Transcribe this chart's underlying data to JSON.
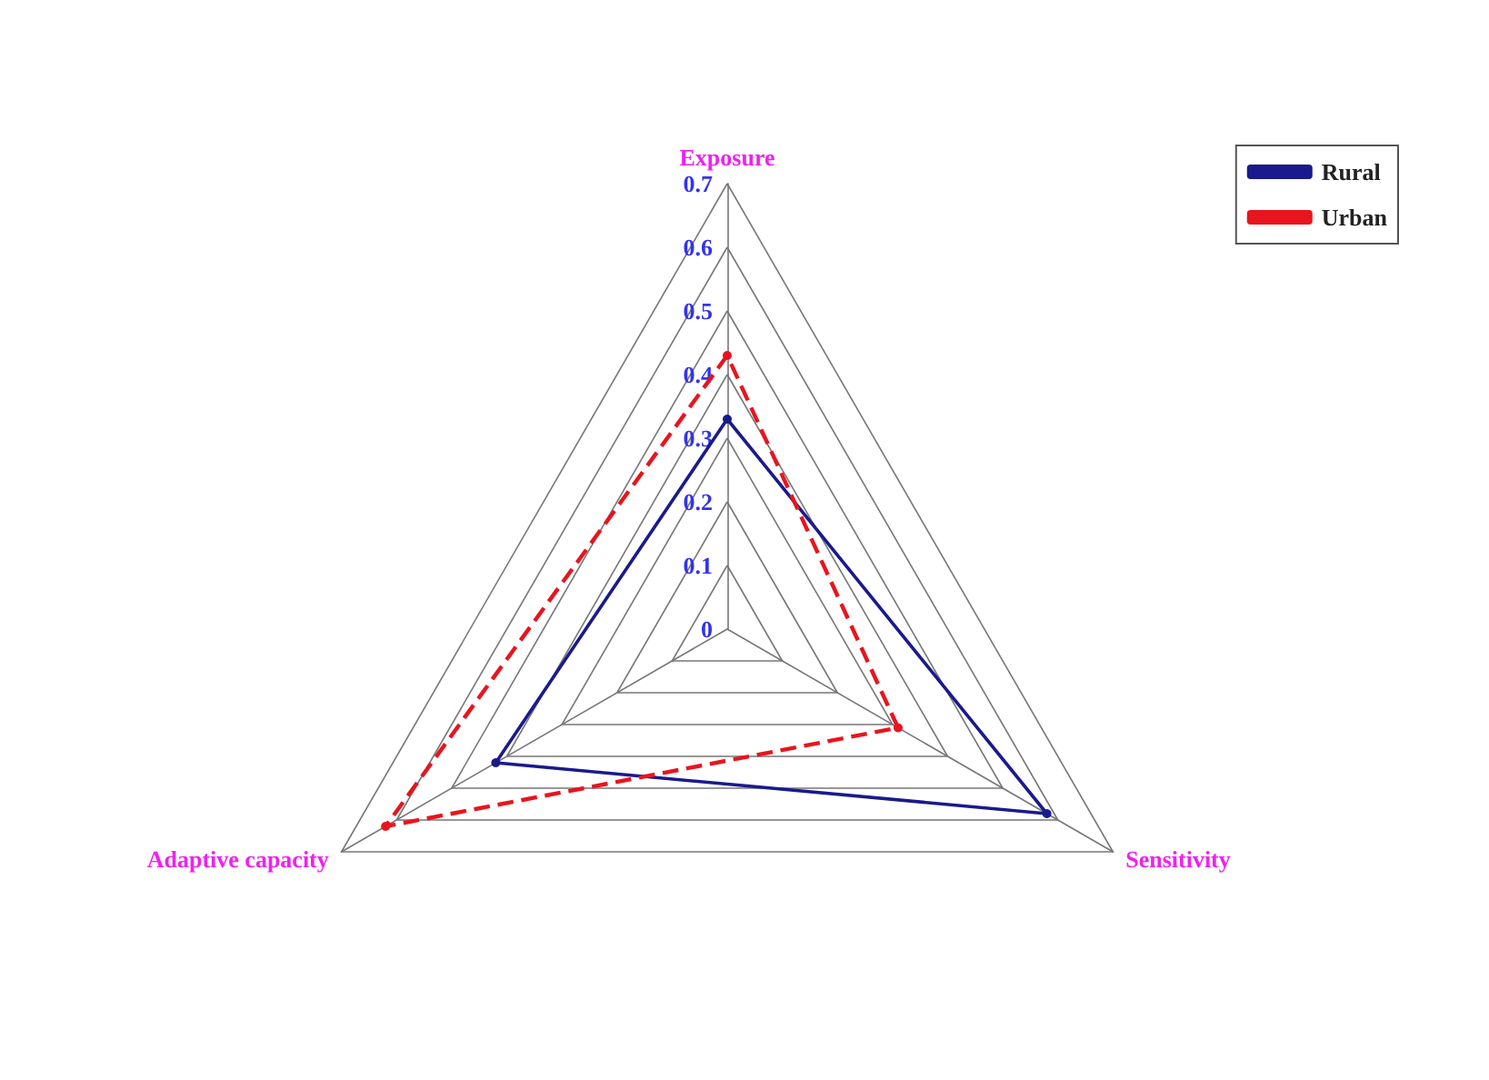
{
  "chart_data": {
    "type": "radar",
    "categories": [
      "Exposure",
      "Sensitivity",
      "Adaptive capacity"
    ],
    "series": [
      {
        "name": "Rural",
        "color": "#1a1a8c",
        "values": [
          0.33,
          0.58,
          0.42
        ],
        "line_style": "solid"
      },
      {
        "name": "Urban",
        "color": "#e8141e",
        "values": [
          0.43,
          0.31,
          0.62
        ],
        "line_style": "dashed"
      }
    ],
    "ylim": [
      0,
      0.7
    ],
    "yticks": [
      0,
      0.1,
      0.2,
      0.3,
      0.4,
      0.5,
      0.6,
      0.7
    ],
    "legend": "top right",
    "marker": "circle",
    "grid": true
  }
}
